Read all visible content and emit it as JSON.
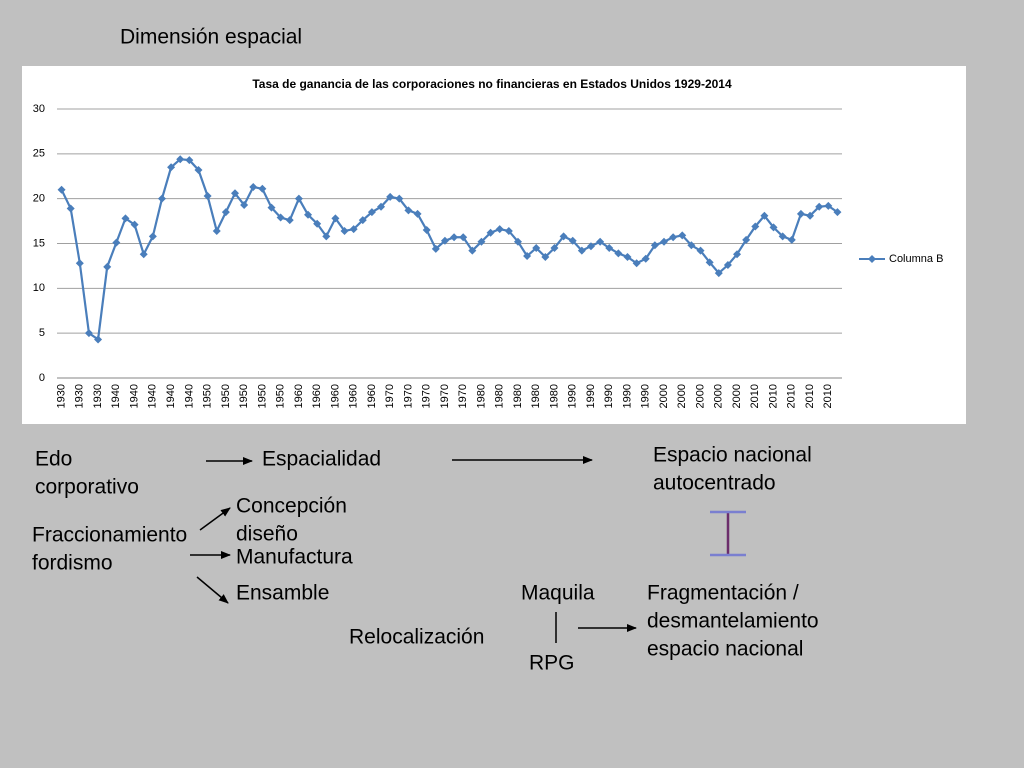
{
  "slide_title": "Dimensión espacial",
  "chart_data": {
    "type": "line",
    "title": "Tasa de ganancia de las corporaciones no financieras en Estados Unidos 1929-2014",
    "categories": [
      "1930",
      null,
      "1930",
      null,
      "1930",
      null,
      "1940",
      null,
      "1940",
      null,
      "1940",
      null,
      "1940",
      null,
      "1940",
      null,
      "1950",
      null,
      "1950",
      null,
      "1950",
      null,
      "1950",
      null,
      "1950",
      null,
      "1960",
      null,
      "1960",
      null,
      "1960",
      null,
      "1960",
      null,
      "1960",
      null,
      "1970",
      null,
      "1970",
      null,
      "1970",
      null,
      "1970",
      null,
      "1970",
      null,
      "1980",
      null,
      "1980",
      null,
      "1980",
      null,
      "1980",
      null,
      "1980",
      null,
      "1990",
      null,
      "1990",
      null,
      "1990",
      null,
      "1990",
      null,
      "1990",
      null,
      "2000",
      null,
      "2000",
      null,
      "2000",
      null,
      "2000",
      null,
      "2000",
      null,
      "2010",
      null,
      "2010",
      null,
      "2010",
      null,
      "2010",
      null,
      "2010",
      null
    ],
    "series": [
      {
        "name": "Columna B",
        "color": "#4a7ebb",
        "values": [
          21.0,
          18.9,
          12.8,
          5.0,
          4.3,
          12.4,
          15.1,
          17.8,
          17.1,
          13.8,
          15.8,
          20.0,
          23.5,
          24.4,
          24.3,
          23.2,
          20.3,
          16.4,
          18.5,
          20.6,
          19.3,
          21.3,
          21.1,
          19.0,
          17.9,
          17.6,
          20.0,
          18.2,
          17.2,
          15.8,
          17.8,
          16.4,
          16.6,
          17.6,
          18.5,
          19.1,
          20.2,
          20.0,
          18.7,
          18.3,
          16.5,
          14.4,
          15.3,
          15.7,
          15.7,
          14.2,
          15.2,
          16.2,
          16.6,
          16.4,
          15.2,
          13.6,
          14.5,
          13.5,
          14.5,
          15.8,
          15.3,
          14.2,
          14.7,
          15.2,
          14.5,
          13.9,
          13.5,
          12.8,
          13.3,
          14.8,
          15.2,
          15.7,
          15.9,
          14.8,
          14.2,
          12.9,
          11.7,
          12.6,
          13.8,
          15.4,
          16.9,
          18.1,
          16.8,
          15.8,
          15.4,
          18.3,
          18.1,
          19.1,
          19.2,
          18.5
        ]
      }
    ],
    "ylim": [
      0,
      30
    ],
    "yticks": [
      0,
      5,
      10,
      15,
      20,
      25,
      30
    ],
    "grid": true,
    "legend": "right"
  },
  "diagram": {
    "edo": [
      "Edo",
      "corporativo"
    ],
    "espacialidad": [
      "Espacialidad"
    ],
    "espacio": [
      "Espacio nacional",
      "autocentrado"
    ],
    "concepcion": [
      "Concepción",
      "diseño"
    ],
    "fraccionamiento": [
      "Fraccionamiento",
      "fordismo"
    ],
    "manufactura": [
      "Manufactura"
    ],
    "ensamble": [
      "Ensamble"
    ],
    "maquila": [
      "Maquila"
    ],
    "fragmentacion": [
      "Fragmentación /",
      "desmantelamiento",
      "espacio nacional"
    ],
    "relocalizacion": [
      "Relocalización"
    ],
    "rpg": [
      "RPG"
    ]
  }
}
